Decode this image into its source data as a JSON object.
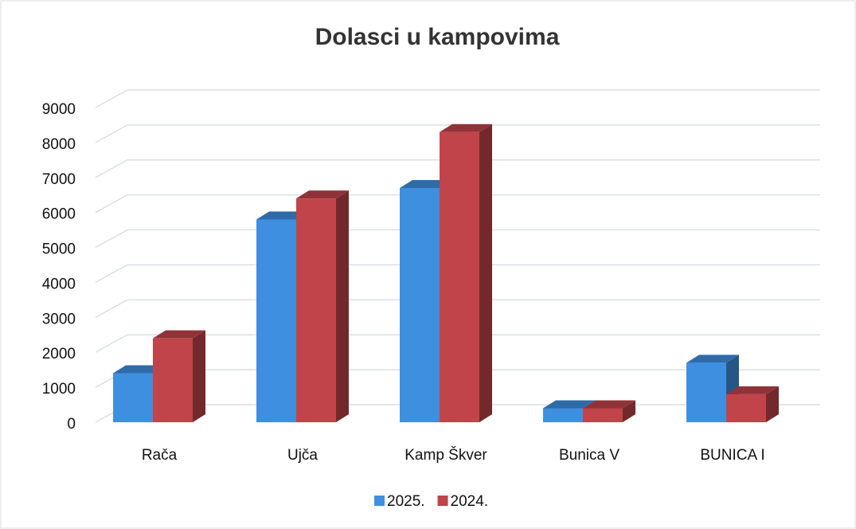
{
  "chart_data": {
    "type": "bar3d",
    "title": "Dolasci u kampovima",
    "categories": [
      "Rača",
      "Ujča",
      "Kamp Škver",
      "Bunica V",
      "BUNICA I"
    ],
    "series": [
      {
        "name": "2025.",
        "color": "#3f8fe0",
        "values": [
          1400,
          5800,
          6700,
          400,
          1700
        ]
      },
      {
        "name": "2024.",
        "color": "#c0444a",
        "values": [
          2400,
          6400,
          8300,
          400,
          800
        ]
      }
    ],
    "ylim": [
      0,
      9000
    ],
    "yticks": [
      0,
      1000,
      2000,
      3000,
      4000,
      5000,
      6000,
      7000,
      8000,
      9000
    ],
    "grid": true,
    "legend": "bottom"
  }
}
